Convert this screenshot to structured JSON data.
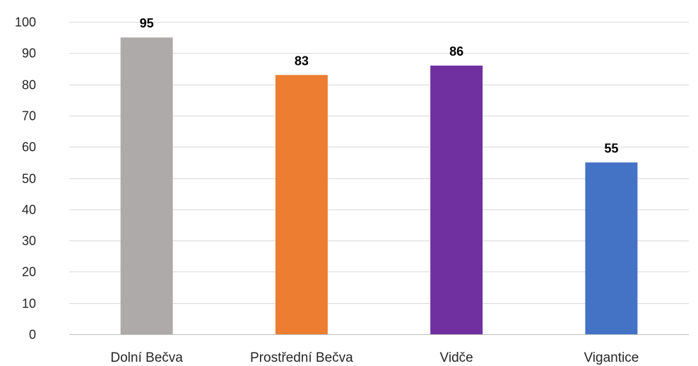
{
  "chart_data": {
    "type": "bar",
    "categories": [
      "Dolní Bečva",
      "Prostřední Bečva",
      "Vidče",
      "Vigantice"
    ],
    "values": [
      95,
      83,
      86,
      55
    ],
    "data_labels": [
      "95",
      "83",
      "86",
      "55"
    ],
    "colors": [
      "#aeaaaa",
      "#ed7d31",
      "#7030a0",
      "#4472c4"
    ],
    "ylim": [
      0,
      100
    ],
    "yticks": [
      0,
      10,
      20,
      30,
      40,
      50,
      60,
      70,
      80,
      90,
      100
    ],
    "ytick_labels": [
      "0",
      "10",
      "20",
      "30",
      "40",
      "50",
      "60",
      "70",
      "80",
      "90",
      "100"
    ],
    "grid": true,
    "legend": "none",
    "title": "",
    "xlabel": "",
    "ylabel": ""
  }
}
